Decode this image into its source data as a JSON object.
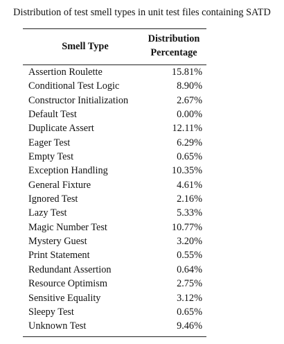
{
  "caption": "Distribution of test smell types in unit test files containing SATD",
  "table": {
    "headers": {
      "smell_type": "Smell Type",
      "distribution_line1": "Distribution",
      "distribution_line2": "Percentage"
    },
    "rows": [
      {
        "name": "Assertion Roulette",
        "value": "15.81%"
      },
      {
        "name": "Conditional Test Logic",
        "value": "8.90%"
      },
      {
        "name": "Constructor Initialization",
        "value": "2.67%"
      },
      {
        "name": "Default Test",
        "value": "0.00%"
      },
      {
        "name": "Duplicate Assert",
        "value": "12.11%"
      },
      {
        "name": "Eager Test",
        "value": "6.29%"
      },
      {
        "name": "Empty Test",
        "value": "0.65%"
      },
      {
        "name": "Exception Handling",
        "value": "10.35%"
      },
      {
        "name": "General Fixture",
        "value": "4.61%"
      },
      {
        "name": "Ignored Test",
        "value": "2.16%"
      },
      {
        "name": "Lazy Test",
        "value": "5.33%"
      },
      {
        "name": "Magic Number Test",
        "value": "10.77%"
      },
      {
        "name": "Mystery Guest",
        "value": "3.20%"
      },
      {
        "name": "Print Statement",
        "value": "0.55%"
      },
      {
        "name": "Redundant Assertion",
        "value": "0.64%"
      },
      {
        "name": "Resource Optimism",
        "value": "2.75%"
      },
      {
        "name": "Sensitive Equality",
        "value": "3.12%"
      },
      {
        "name": "Sleepy Test",
        "value": "0.65%"
      },
      {
        "name": "Unknown Test",
        "value": "9.46%"
      }
    ]
  }
}
